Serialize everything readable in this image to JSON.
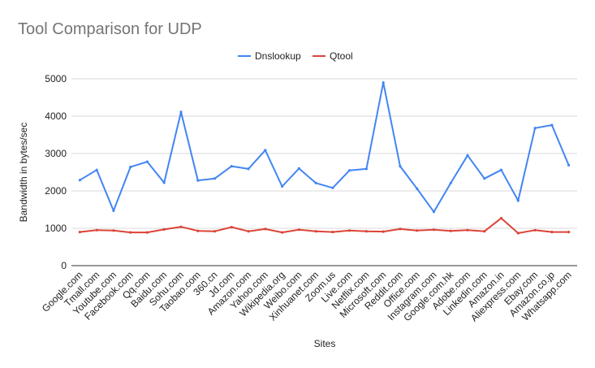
{
  "chart_data": {
    "type": "line",
    "title": "Tool Comparison for UDP",
    "xlabel": "Sites",
    "ylabel": "Bandwidth in bytes/sec",
    "ylim": [
      0,
      5000
    ],
    "yticks": [
      0,
      1000,
      2000,
      3000,
      4000,
      5000
    ],
    "grid": true,
    "legend_position": "top-center",
    "categories": [
      "Google.com",
      "Tmall.com",
      "Youtube.com",
      "Facebook.com",
      "Qq.com",
      "Baidu.com",
      "Sohu.com",
      "Taobao.com",
      "360.cn",
      "Jd.com",
      "Amazon.com",
      "Yahoo.com",
      "Wikipedia.org",
      "Weibo.com",
      "Xinhuanet.com",
      "Zoom.us",
      "Live.com",
      "Netflix.com",
      "Microsoft.com",
      "Reddit.com",
      "Office.com",
      "Instagram.com",
      "Google.com.hk",
      "Adobe.com",
      "Linkedin.com",
      "Amazon.in",
      "Aliexpress.com",
      "Ebay.com",
      "Amazon.co.jp",
      "Whatsapp.com"
    ],
    "series": [
      {
        "name": "Dnslookup",
        "color": "#4285f4",
        "values": [
          2290,
          2560,
          1470,
          2640,
          2780,
          2220,
          4110,
          2280,
          2330,
          2660,
          2590,
          3090,
          2120,
          2600,
          2210,
          2080,
          2550,
          2590,
          4900,
          2660,
          2060,
          1440,
          2210,
          2950,
          2330,
          2560,
          1740,
          3680,
          3760,
          2690
        ]
      },
      {
        "name": "Qtool",
        "color": "#db4437",
        "values": [
          900,
          950,
          940,
          890,
          890,
          970,
          1040,
          930,
          920,
          1030,
          920,
          980,
          890,
          960,
          920,
          900,
          940,
          920,
          910,
          980,
          940,
          960,
          930,
          950,
          920,
          1270,
          870,
          950,
          900,
          900
        ]
      }
    ]
  }
}
